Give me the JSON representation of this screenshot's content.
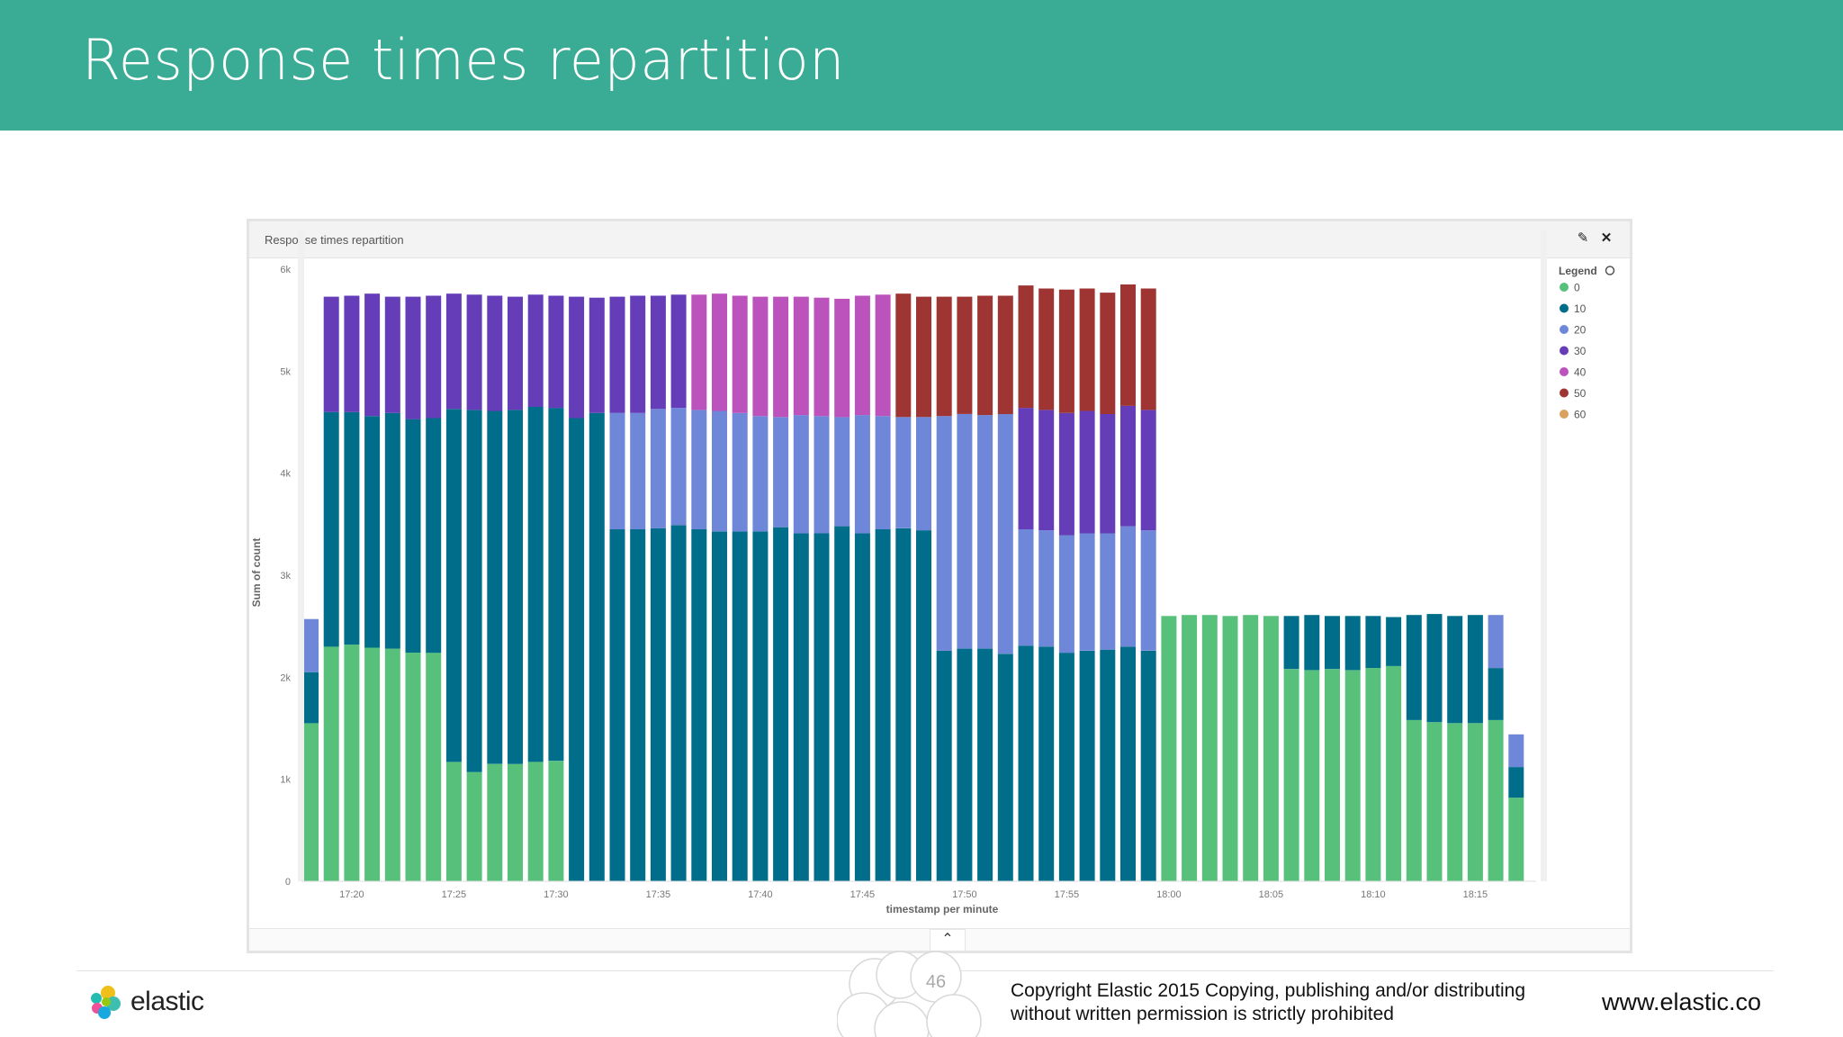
{
  "slide": {
    "title": "Response times repartition",
    "page_number": "46",
    "copyright_line1": "Copyright Elastic 2015 Copying, publishing and/or distributing",
    "copyright_line2": "without written permission is strictly prohibited",
    "website": "www.elastic.co",
    "brand_name": "elastic"
  },
  "panel": {
    "title": "Response times repartition",
    "edit_icon": "pencil-icon",
    "close_icon": "close-icon",
    "collapse_icon": "chevron-up-icon"
  },
  "colors": {
    "header": "#3aab94",
    "0": "#57c17b",
    "10": "#006e8a",
    "20": "#6f87d8",
    "30": "#663db8",
    "40": "#bc52bc",
    "50": "#9e3533",
    "60": "#daa05d"
  },
  "chart_data": {
    "type": "bar",
    "stacked": true,
    "title": "Response times repartition",
    "xlabel": "timestamp per minute",
    "ylabel": "Sum of count",
    "ylim": [
      0,
      6000
    ],
    "y_ticks": [
      0,
      1000,
      2000,
      3000,
      4000,
      5000,
      6000
    ],
    "y_tick_labels": [
      "0",
      "1k",
      "2k",
      "3k",
      "4k",
      "5k",
      "6k"
    ],
    "x_start": "17:18",
    "x_tick_labels": [
      "17:20",
      "17:25",
      "17:30",
      "17:35",
      "17:40",
      "17:45",
      "17:50",
      "17:55",
      "18:00",
      "18:05",
      "18:10",
      "18:15"
    ],
    "x": [
      "17:18",
      "17:19",
      "17:20",
      "17:21",
      "17:22",
      "17:23",
      "17:24",
      "17:25",
      "17:26",
      "17:27",
      "17:28",
      "17:29",
      "17:30",
      "17:31",
      "17:32",
      "17:33",
      "17:34",
      "17:35",
      "17:36",
      "17:37",
      "17:38",
      "17:39",
      "17:40",
      "17:41",
      "17:42",
      "17:43",
      "17:44",
      "17:45",
      "17:46",
      "17:47",
      "17:48",
      "17:49",
      "17:50",
      "17:51",
      "17:52",
      "17:53",
      "17:54",
      "17:55",
      "17:56",
      "17:57",
      "17:58",
      "17:59",
      "18:00",
      "18:01",
      "18:02",
      "18:03",
      "18:04",
      "18:05",
      "18:06",
      "18:07",
      "18:08",
      "18:09",
      "18:10",
      "18:11",
      "18:12",
      "18:13",
      "18:14",
      "18:15",
      "18:16",
      "18:17"
    ],
    "legend_title": "Legend",
    "legend_position": "right",
    "grid": false,
    "series": [
      {
        "name": "0",
        "values": [
          1550,
          2300,
          2320,
          2290,
          2280,
          2240,
          2240,
          1170,
          1070,
          1150,
          1150,
          1170,
          1180,
          0,
          0,
          0,
          0,
          0,
          0,
          0,
          0,
          0,
          0,
          0,
          0,
          0,
          0,
          0,
          0,
          0,
          0,
          0,
          0,
          0,
          0,
          0,
          0,
          0,
          0,
          0,
          0,
          0,
          2600,
          2610,
          2610,
          2600,
          2610,
          2600,
          2080,
          2070,
          2080,
          2070,
          2090,
          2110,
          1580,
          1560,
          1550,
          1550,
          1580,
          820
        ]
      },
      {
        "name": "10",
        "values": [
          500,
          2300,
          2280,
          2270,
          2310,
          2290,
          2300,
          3460,
          3550,
          3460,
          3470,
          3480,
          3460,
          4540,
          4590,
          3450,
          3450,
          3460,
          3490,
          3450,
          3430,
          3430,
          3430,
          3470,
          3410,
          3410,
          3480,
          3410,
          3450,
          3460,
          3440,
          2260,
          2280,
          2280,
          2230,
          2310,
          2300,
          2240,
          2260,
          2270,
          2300,
          2260,
          0,
          0,
          0,
          0,
          0,
          0,
          520,
          540,
          520,
          530,
          510,
          480,
          1030,
          1060,
          1050,
          1060,
          510,
          300
        ]
      },
      {
        "name": "20",
        "values": [
          520,
          0,
          0,
          0,
          0,
          0,
          0,
          0,
          0,
          0,
          0,
          0,
          0,
          0,
          0,
          1140,
          1140,
          1170,
          1150,
          1170,
          1180,
          1160,
          1130,
          1080,
          1160,
          1150,
          1070,
          1160,
          1110,
          1090,
          1110,
          2300,
          2300,
          2290,
          2350,
          1140,
          1140,
          1150,
          1150,
          1140,
          1180,
          1180,
          0,
          0,
          0,
          0,
          0,
          0,
          0,
          0,
          0,
          0,
          0,
          0,
          0,
          0,
          0,
          0,
          520,
          320
        ]
      },
      {
        "name": "30",
        "values": [
          0,
          1130,
          1140,
          1200,
          1140,
          1200,
          1200,
          1130,
          1130,
          1130,
          1110,
          1100,
          1100,
          1190,
          1130,
          1140,
          1150,
          1110,
          1110,
          0,
          0,
          0,
          0,
          0,
          0,
          0,
          0,
          0,
          0,
          0,
          0,
          0,
          0,
          0,
          0,
          1190,
          1180,
          1200,
          1200,
          1170,
          1180,
          1180,
          0,
          0,
          0,
          0,
          0,
          0,
          0,
          0,
          0,
          0,
          0,
          0,
          0,
          0,
          0,
          0,
          0,
          0
        ]
      },
      {
        "name": "40",
        "values": [
          0,
          0,
          0,
          0,
          0,
          0,
          0,
          0,
          0,
          0,
          0,
          0,
          0,
          0,
          0,
          0,
          0,
          0,
          0,
          1130,
          1150,
          1150,
          1170,
          1180,
          1160,
          1160,
          1160,
          1170,
          1190,
          0,
          0,
          0,
          0,
          0,
          0,
          0,
          0,
          0,
          0,
          0,
          0,
          0,
          0,
          0,
          0,
          0,
          0,
          0,
          0,
          0,
          0,
          0,
          0,
          0,
          0,
          0,
          0,
          0,
          0,
          0
        ]
      },
      {
        "name": "50",
        "values": [
          0,
          0,
          0,
          0,
          0,
          0,
          0,
          0,
          0,
          0,
          0,
          0,
          0,
          0,
          0,
          0,
          0,
          0,
          0,
          0,
          0,
          0,
          0,
          0,
          0,
          0,
          0,
          0,
          0,
          1210,
          1180,
          1170,
          1150,
          1170,
          1160,
          1200,
          1190,
          1210,
          1200,
          1190,
          1190,
          1190,
          0,
          0,
          0,
          0,
          0,
          0,
          0,
          0,
          0,
          0,
          0,
          0,
          0,
          0,
          0,
          0,
          0,
          0
        ]
      },
      {
        "name": "60",
        "values": [
          0,
          0,
          0,
          0,
          0,
          0,
          0,
          0,
          0,
          0,
          0,
          0,
          0,
          0,
          0,
          0,
          0,
          0,
          0,
          0,
          0,
          0,
          0,
          0,
          0,
          0,
          0,
          0,
          0,
          0,
          0,
          0,
          0,
          0,
          0,
          0,
          0,
          0,
          0,
          0,
          0,
          0,
          0,
          0,
          0,
          0,
          0,
          0,
          0,
          0,
          0,
          0,
          0,
          0,
          0,
          0,
          0,
          0,
          0,
          0
        ]
      }
    ]
  }
}
